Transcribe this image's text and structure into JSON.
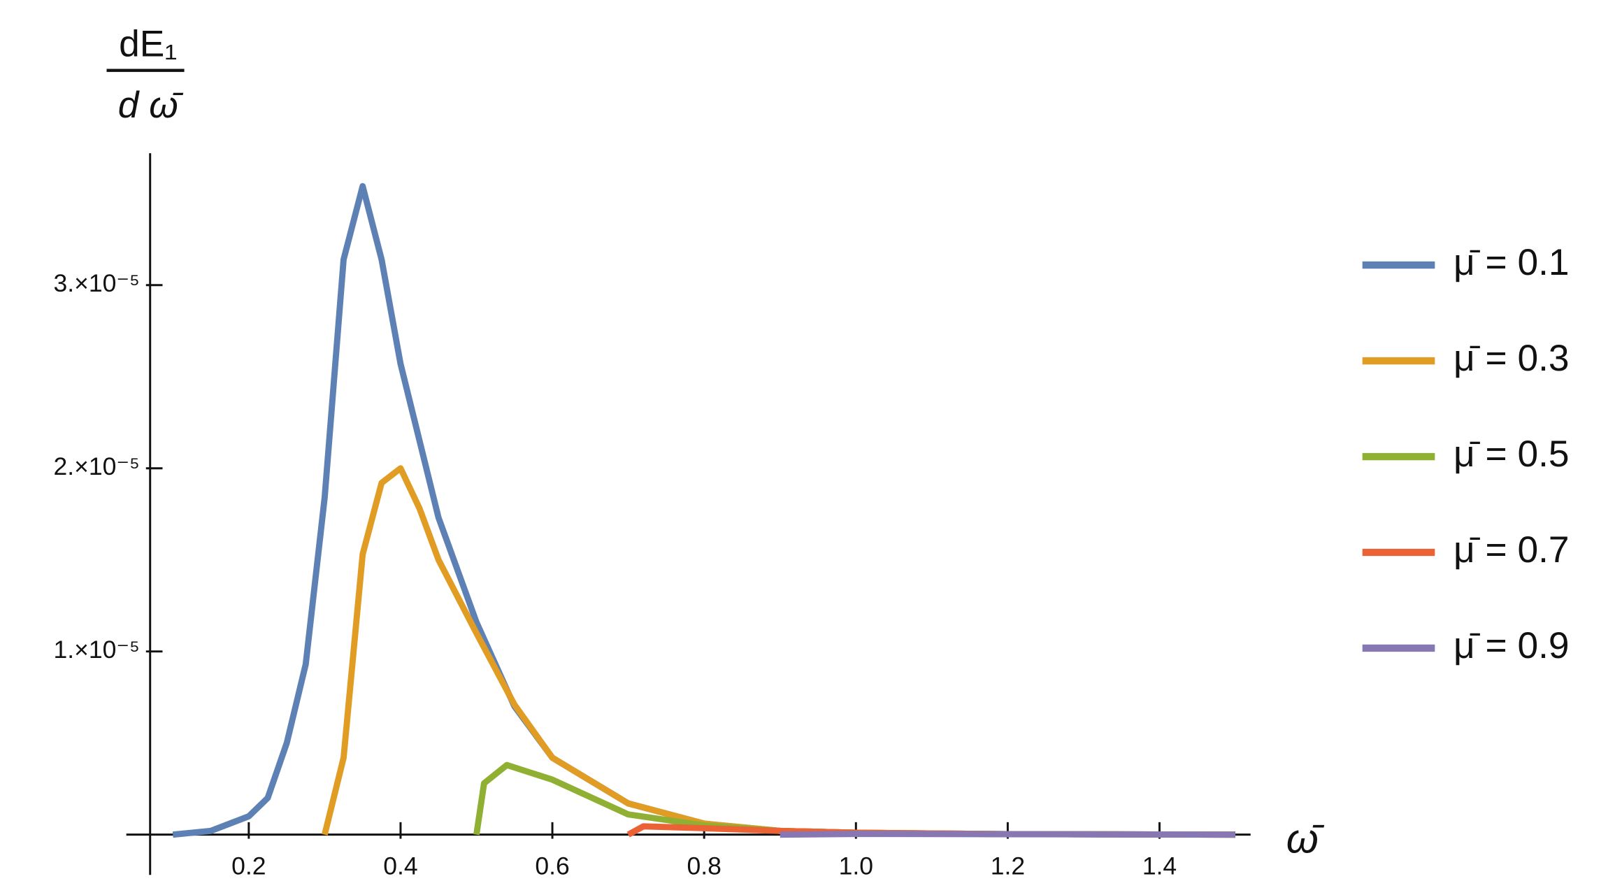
{
  "chart_data": {
    "type": "line",
    "ylabel_numerator": "dE₁",
    "ylabel_denominator": "d ω̄",
    "xlabel": "ω̄",
    "xlim": [
      0.07,
      1.52
    ],
    "ylim": [
      -2.2e-06,
      3.72e-05
    ],
    "xticks": [
      0.2,
      0.4,
      0.6,
      0.8,
      {
        "value": 1.0,
        "label": "1.0"
      },
      1.2,
      1.4
    ],
    "yticks": [
      {
        "value": 1e-05,
        "label": "1.×10⁻⁵"
      },
      {
        "value": 2e-05,
        "label": "2.×10⁻⁵"
      },
      {
        "value": 3e-05,
        "label": "3.×10⁻⁵"
      }
    ],
    "series": [
      {
        "name": "μ̄ = 0.1",
        "color": "#5e81b5",
        "x": [
          0.1,
          0.15,
          0.2,
          0.225,
          0.25,
          0.275,
          0.3,
          0.325,
          0.35,
          0.375,
          0.4,
          0.45,
          0.5,
          0.55,
          0.6,
          0.7,
          0.8,
          0.9,
          1.0,
          1.2,
          1.5
        ],
        "values": [
          0,
          2e-07,
          1e-06,
          2e-06,
          5e-06,
          9.3e-06,
          1.84e-05,
          3.14e-05,
          3.54e-05,
          3.14e-05,
          2.57e-05,
          1.73e-05,
          1.16e-05,
          7e-06,
          4.2e-06,
          1.7e-06,
          6e-07,
          2e-07,
          1e-07,
          3e-08,
          0
        ]
      },
      {
        "name": "μ̄ = 0.3",
        "color": "#e19c24",
        "x": [
          0.3,
          0.325,
          0.35,
          0.375,
          0.4,
          0.425,
          0.45,
          0.5,
          0.55,
          0.6,
          0.7,
          0.8,
          0.9,
          1.0,
          1.2,
          1.5
        ],
        "values": [
          0,
          4.2e-06,
          1.53e-05,
          1.92e-05,
          2e-05,
          1.78e-05,
          1.5e-05,
          1.1e-05,
          7.1e-06,
          4.2e-06,
          1.7e-06,
          6e-07,
          2e-07,
          1e-07,
          3e-08,
          0
        ]
      },
      {
        "name": "μ̄ = 0.5",
        "color": "#8fb032",
        "x": [
          0.5,
          0.51,
          0.54,
          0.6,
          0.7,
          0.8,
          0.9,
          1.0,
          1.2,
          1.5
        ],
        "values": [
          0,
          2.8e-06,
          3.8e-06,
          3e-06,
          1.1e-06,
          5e-07,
          2e-07,
          1e-07,
          3e-08,
          0
        ]
      },
      {
        "name": "μ̄ = 0.7",
        "color": "#eb6235",
        "x": [
          0.7,
          0.72,
          0.8,
          0.9,
          1.0,
          1.2,
          1.5
        ],
        "values": [
          0,
          4.5e-07,
          3.5e-07,
          2e-07,
          1e-07,
          3e-08,
          0
        ]
      },
      {
        "name": "μ̄ = 0.9",
        "color": "#8778b3",
        "x": [
          0.9,
          1.0,
          1.2,
          1.5
        ],
        "values": [
          0,
          4e-08,
          2e-08,
          0
        ]
      }
    ]
  }
}
